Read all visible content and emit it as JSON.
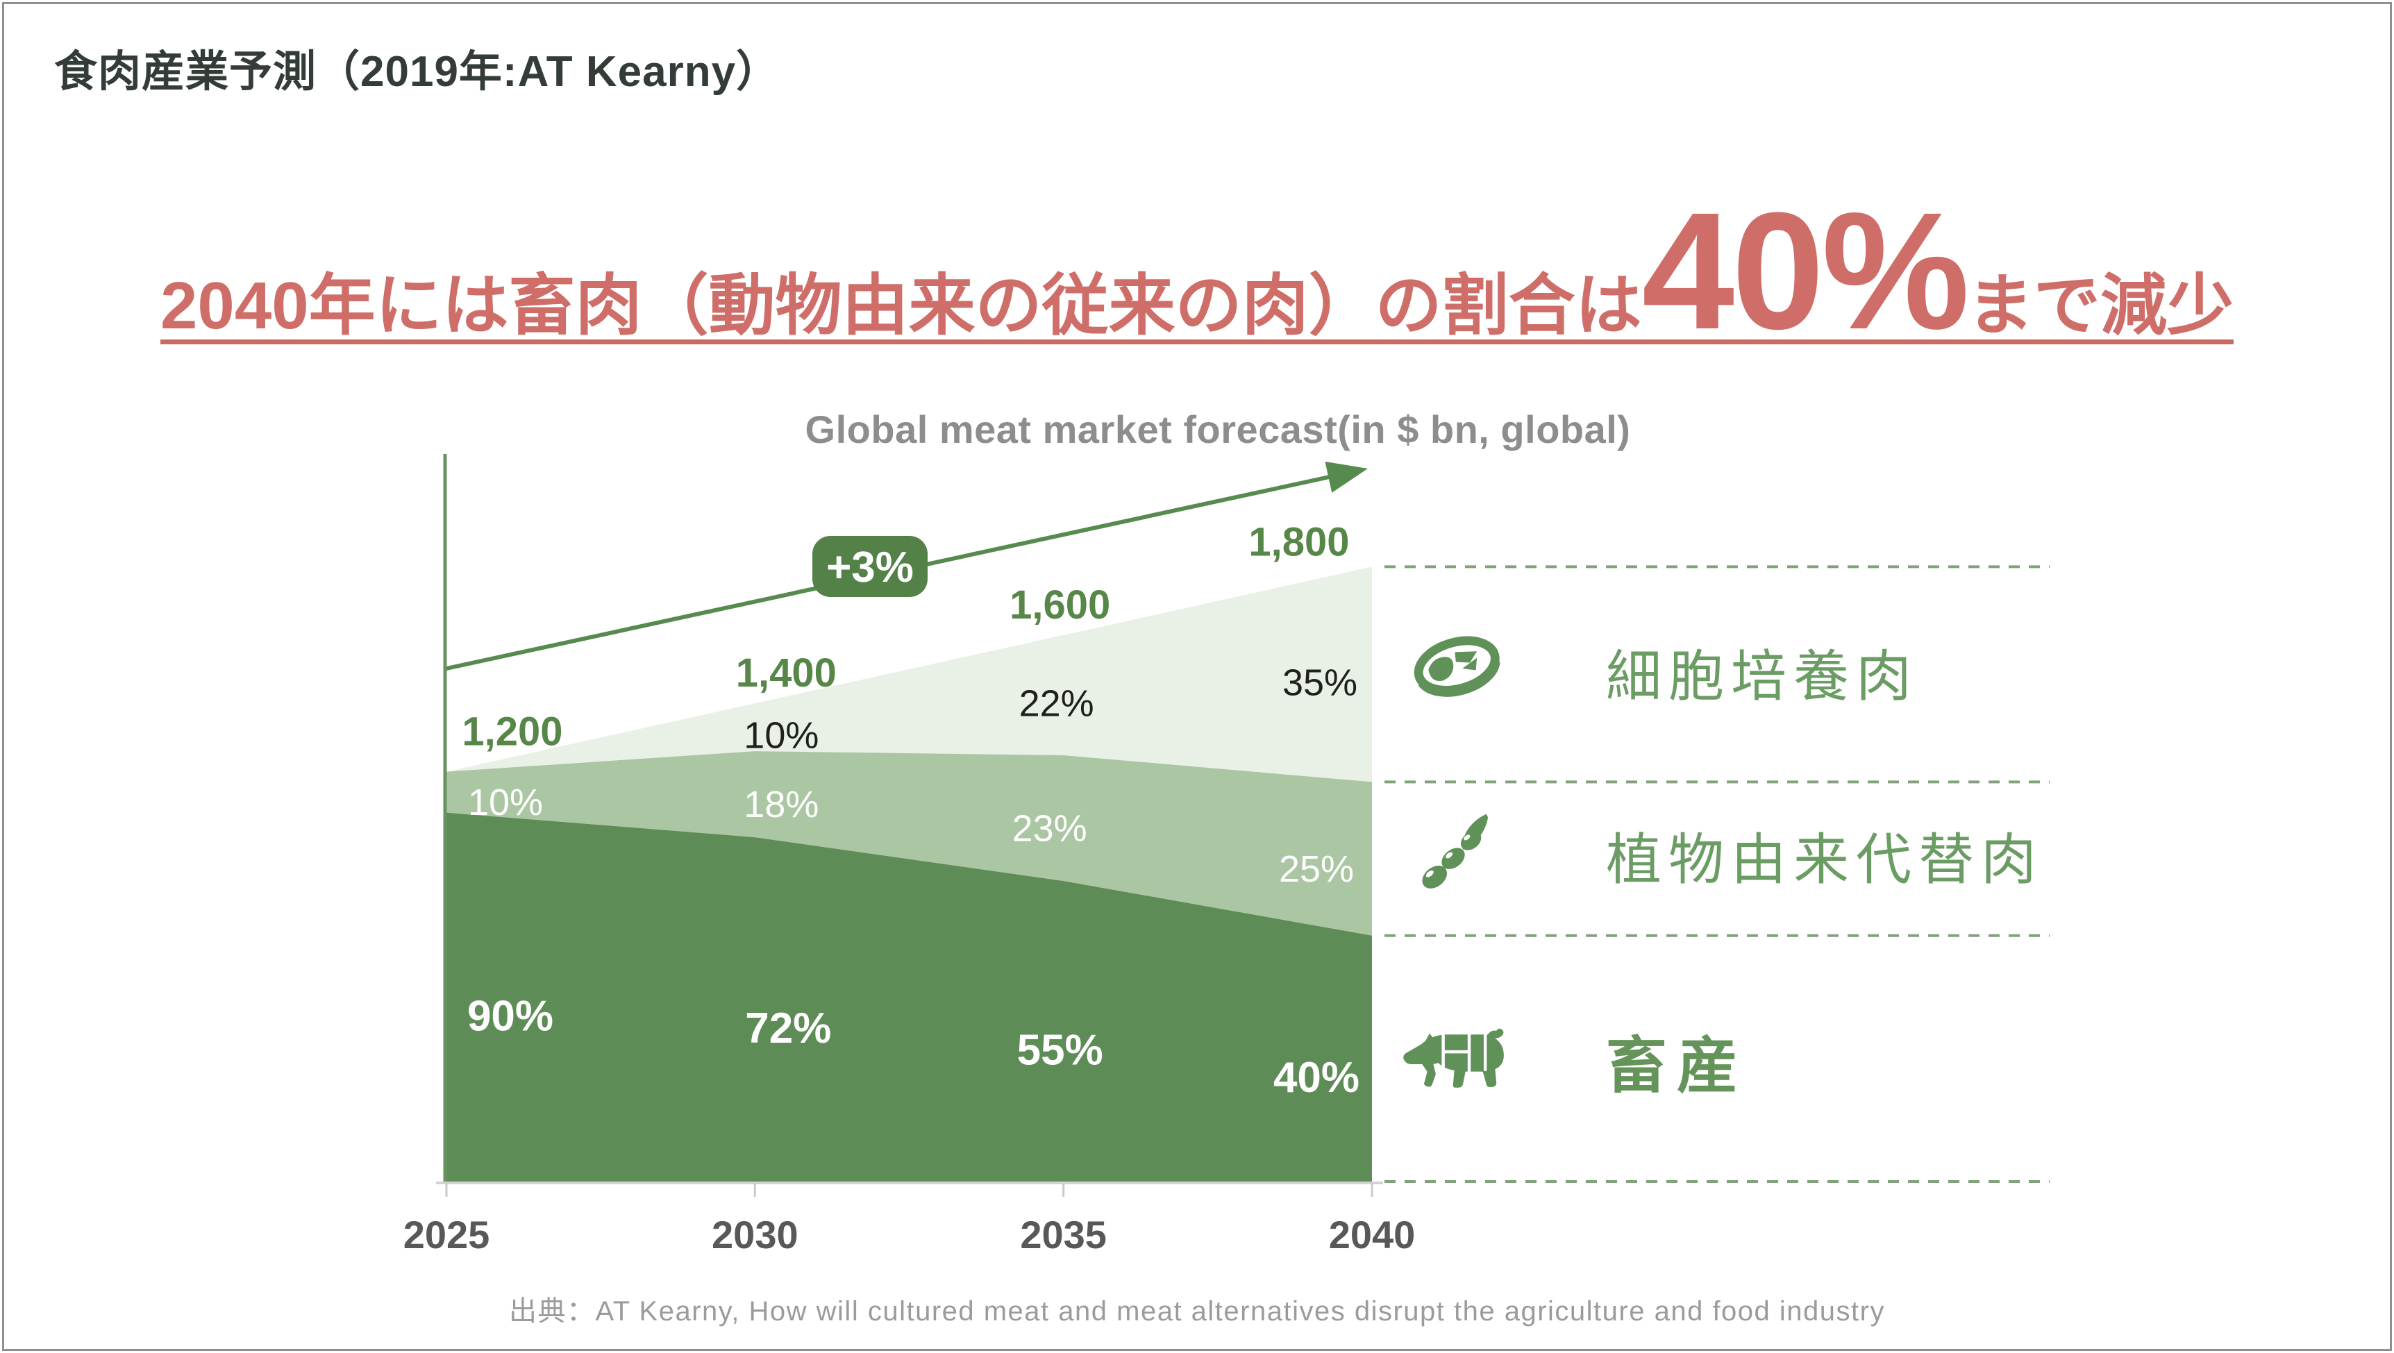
{
  "slide": {
    "title": "食肉産業予測（2019年:AT Kearny）",
    "headline": {
      "prefix": "2040年には畜肉（動物由来の従来の肉）の割合は",
      "highlight": "40%",
      "suffix": "まで減少"
    },
    "source": "出典：AT Kearny, How will cultured meat and meat alternatives disrupt the agriculture and food industry"
  },
  "chart_data": {
    "type": "area",
    "title": "Global meat market forecast(in $ bn, global)",
    "x_labels": [
      "2025",
      "2030",
      "2035",
      "2040"
    ],
    "totals": [
      1200,
      1400,
      1600,
      1800
    ],
    "total_labels": [
      "1,200",
      "1,400",
      "1,600",
      "1,800"
    ],
    "growth_badge": "+3%",
    "unit": "$ bn",
    "legend_position": "right",
    "series": [
      {
        "name": "細胞培養肉",
        "values": [
          0,
          10,
          22,
          35
        ],
        "labels": [
          "",
          "10%",
          "22%",
          "35%"
        ],
        "color": "#e9f0e5",
        "label_color": "#1f1f1f",
        "bold": false
      },
      {
        "name": "植物由来代替肉",
        "values": [
          10,
          18,
          23,
          25
        ],
        "labels": [
          "10%",
          "18%",
          "23%",
          "25%"
        ],
        "color": "#aac6a3",
        "label_color": "#ffffff",
        "bold": false
      },
      {
        "name": "畜産",
        "values": [
          90,
          72,
          55,
          40
        ],
        "labels": [
          "90%",
          "72%",
          "55%",
          "40%"
        ],
        "color": "#5e8c56",
        "label_color": "#ffffff",
        "bold": true
      }
    ],
    "legend": [
      {
        "icon": "steak-icon",
        "label": "細胞培養肉"
      },
      {
        "icon": "soybean-icon",
        "label": "植物由来代替肉"
      },
      {
        "icon": "pig-icon",
        "label": "畜産"
      }
    ]
  },
  "colors": {
    "headline_red": "#cf6d68",
    "title_dark": "#333c37",
    "value_green": "#578748",
    "axis_green": "#67935f",
    "arrow_green": "#578a4e",
    "badge_green": "#538148",
    "dotted_green": "#84a17e",
    "legend_green": "#6b9c64",
    "icon_green": "#5f9158",
    "year_gray": "#585858",
    "baseline_gray": "#d2d2d2"
  }
}
